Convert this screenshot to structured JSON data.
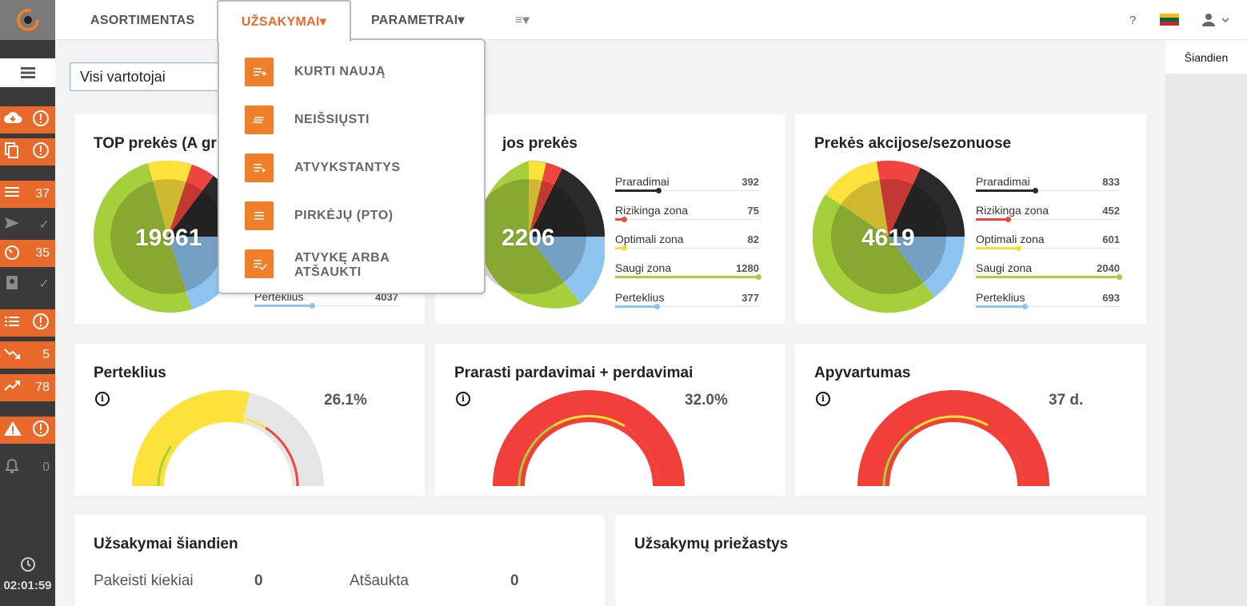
{
  "nav": {
    "items": [
      {
        "label": "ASORTIMENTAS"
      },
      {
        "label": "UŽSAKYMAI▾"
      },
      {
        "label": "PARAMETRAI▾"
      },
      {
        "label": "≡▾"
      }
    ],
    "help": "?",
    "flag_colors": [
      "#fdb913",
      "#006a44",
      "#c1272d"
    ]
  },
  "dropdown": {
    "items": [
      {
        "label": "KURTI NAUJĄ",
        "icon": "list-add-icon"
      },
      {
        "label": "NEIŠSIŲSTI",
        "icon": "unsent-icon"
      },
      {
        "label": "ATVYKSTANTYS",
        "icon": "arriving-icon"
      },
      {
        "label": "PIRKĖJŲ (PTO)",
        "icon": "list-icon"
      },
      {
        "label": "ATVYKĘ ARBA",
        "label2": "ATŠAUKTI",
        "icon": "list-check-icon"
      }
    ]
  },
  "filter": {
    "value": "Visi vartotojai"
  },
  "right_panel": {
    "tab": "Šiandien"
  },
  "sidebar": {
    "rows": [
      {
        "icon": "cloud-download-icon",
        "value": "!",
        "style": "orange"
      },
      {
        "icon": "copy-icon",
        "value": "!",
        "style": "orange"
      },
      {
        "icon": "list-icon",
        "value": "37",
        "style": "orange"
      },
      {
        "icon": "send-icon",
        "value": "✓",
        "style": "dark"
      },
      {
        "icon": "timer-icon",
        "value": "35",
        "style": "orange"
      },
      {
        "icon": "clipboard-icon",
        "value": "✓",
        "style": "dark"
      },
      {
        "icon": "bullet-list-icon",
        "value": "!",
        "style": "orange"
      },
      {
        "icon": "trend-down-icon",
        "value": "5",
        "style": "orange"
      },
      {
        "icon": "trend-up-icon",
        "value": "78",
        "style": "orange"
      },
      {
        "icon": "warning-icon",
        "value": "!",
        "style": "orange"
      },
      {
        "icon": "bell-icon",
        "value": "0",
        "style": "dark"
      }
    ],
    "clock": "02:01:59"
  },
  "cards": {
    "top": {
      "title": "TOP prekės (A gr",
      "total": "19961",
      "last_label": "Perteklius",
      "last_value": "4037"
    },
    "group": {
      "title": "jos prekės",
      "total": "2206"
    },
    "promo": {
      "title": "Prekės akcijose/sezonuose",
      "total": "4619"
    }
  },
  "zones": {
    "group": [
      {
        "label": "Praradimai",
        "value": "392",
        "color": "#2a2a2a",
        "fill": 0.3
      },
      {
        "label": "Rizikinga zona",
        "value": "75",
        "color": "#f0453f",
        "fill": 0.06
      },
      {
        "label": "Optimali zona",
        "value": "82",
        "color": "#f4df3a",
        "fill": 0.06
      },
      {
        "label": "Saugi zona",
        "value": "1280",
        "color": "#a6cf3c",
        "fill": 1.0
      },
      {
        "label": "Perteklius",
        "value": "377",
        "color": "#8ec4f0",
        "fill": 0.29
      }
    ],
    "promo": [
      {
        "label": "Praradimai",
        "value": "833",
        "color": "#2a2a2a",
        "fill": 0.41
      },
      {
        "label": "Rizikinga zona",
        "value": "452",
        "color": "#f0453f",
        "fill": 0.22
      },
      {
        "label": "Optimali zona",
        "value": "601",
        "color": "#f4df3a",
        "fill": 0.29
      },
      {
        "label": "Saugi zona",
        "value": "2040",
        "color": "#a6cf3c",
        "fill": 1.0
      },
      {
        "label": "Perteklius",
        "value": "693",
        "color": "#8ec4f0",
        "fill": 0.34
      }
    ]
  },
  "gauges": [
    {
      "title": "Perteklius",
      "value": "26.1%",
      "fraction": 0.261,
      "colors": {
        "fill": "#fde23c",
        "rest": "#e6e6e6"
      }
    },
    {
      "title": "Prarasti pardavimai + perdavimai",
      "value": "32.0%",
      "fraction": 1.0,
      "colors": {
        "fill": "#f23f3a",
        "rest": "#e6e6e6"
      }
    },
    {
      "title": "Apyvartumas",
      "value": "37 d.",
      "fraction": 1.0,
      "colors": {
        "fill": "#f23f3a",
        "rest": "#e6e6e6"
      }
    }
  ],
  "bottom": {
    "orders_title": "Užsakymai šiandien",
    "changed_label": "Pakeisti kiekiai",
    "changed_value": "0",
    "cancelled_label": "Atšaukta",
    "cancelled_value": "0",
    "reasons_title": "Užsakymų priežastys"
  }
}
